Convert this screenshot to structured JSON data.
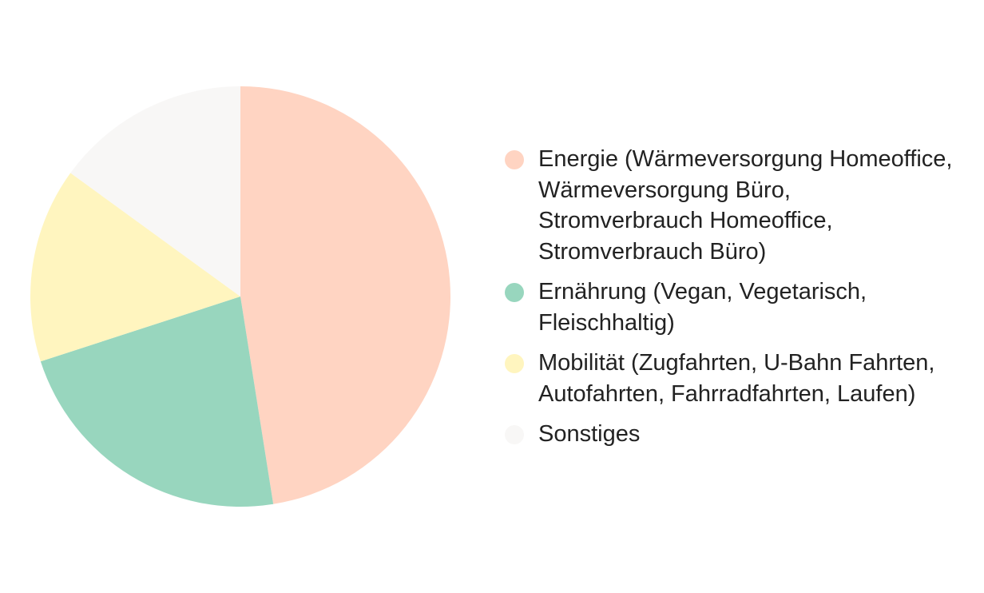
{
  "chart_data": {
    "type": "pie",
    "title": "",
    "slices": [
      {
        "label": "Energie (Wärmeversorgung Homeoffice, Wärmeversorgung Büro, Stromverbrauch Homeoffice, Stromverbrauch Büro)",
        "value": 47.5,
        "color": "#ffd4c2"
      },
      {
        "label": "Ernährung (Vegan, Vegetarisch, Fleischhaltig)",
        "value": 22.5,
        "color": "#98d6be"
      },
      {
        "label": "Mobilität (Zugfahrten, U-Bahn Fahrten, Autofahrten, Fahrradfahrten, Laufen)",
        "value": 15,
        "color": "#fff5bf"
      },
      {
        "label": "Sonstiges",
        "value": 15,
        "color": "#f8f7f6"
      }
    ],
    "legend_position": "right",
    "start_angle": "12 o'clock",
    "direction": "clockwise"
  },
  "legend": {
    "items": [
      {
        "label": "Energie (Wärmeversorgung Homeoffice, Wärmeversorgung Büro, Stromverbrauch Homeoffice, Stromverbrauch Büro)"
      },
      {
        "label": "Ernährung (Vegan, Vegetarisch, Fleischhaltig)"
      },
      {
        "label": "Mobilität (Zugfahrten, U-Bahn Fahrten, Autofahrten, Fahrradfahrten, Laufen)"
      },
      {
        "label": "Sonstiges"
      }
    ]
  }
}
